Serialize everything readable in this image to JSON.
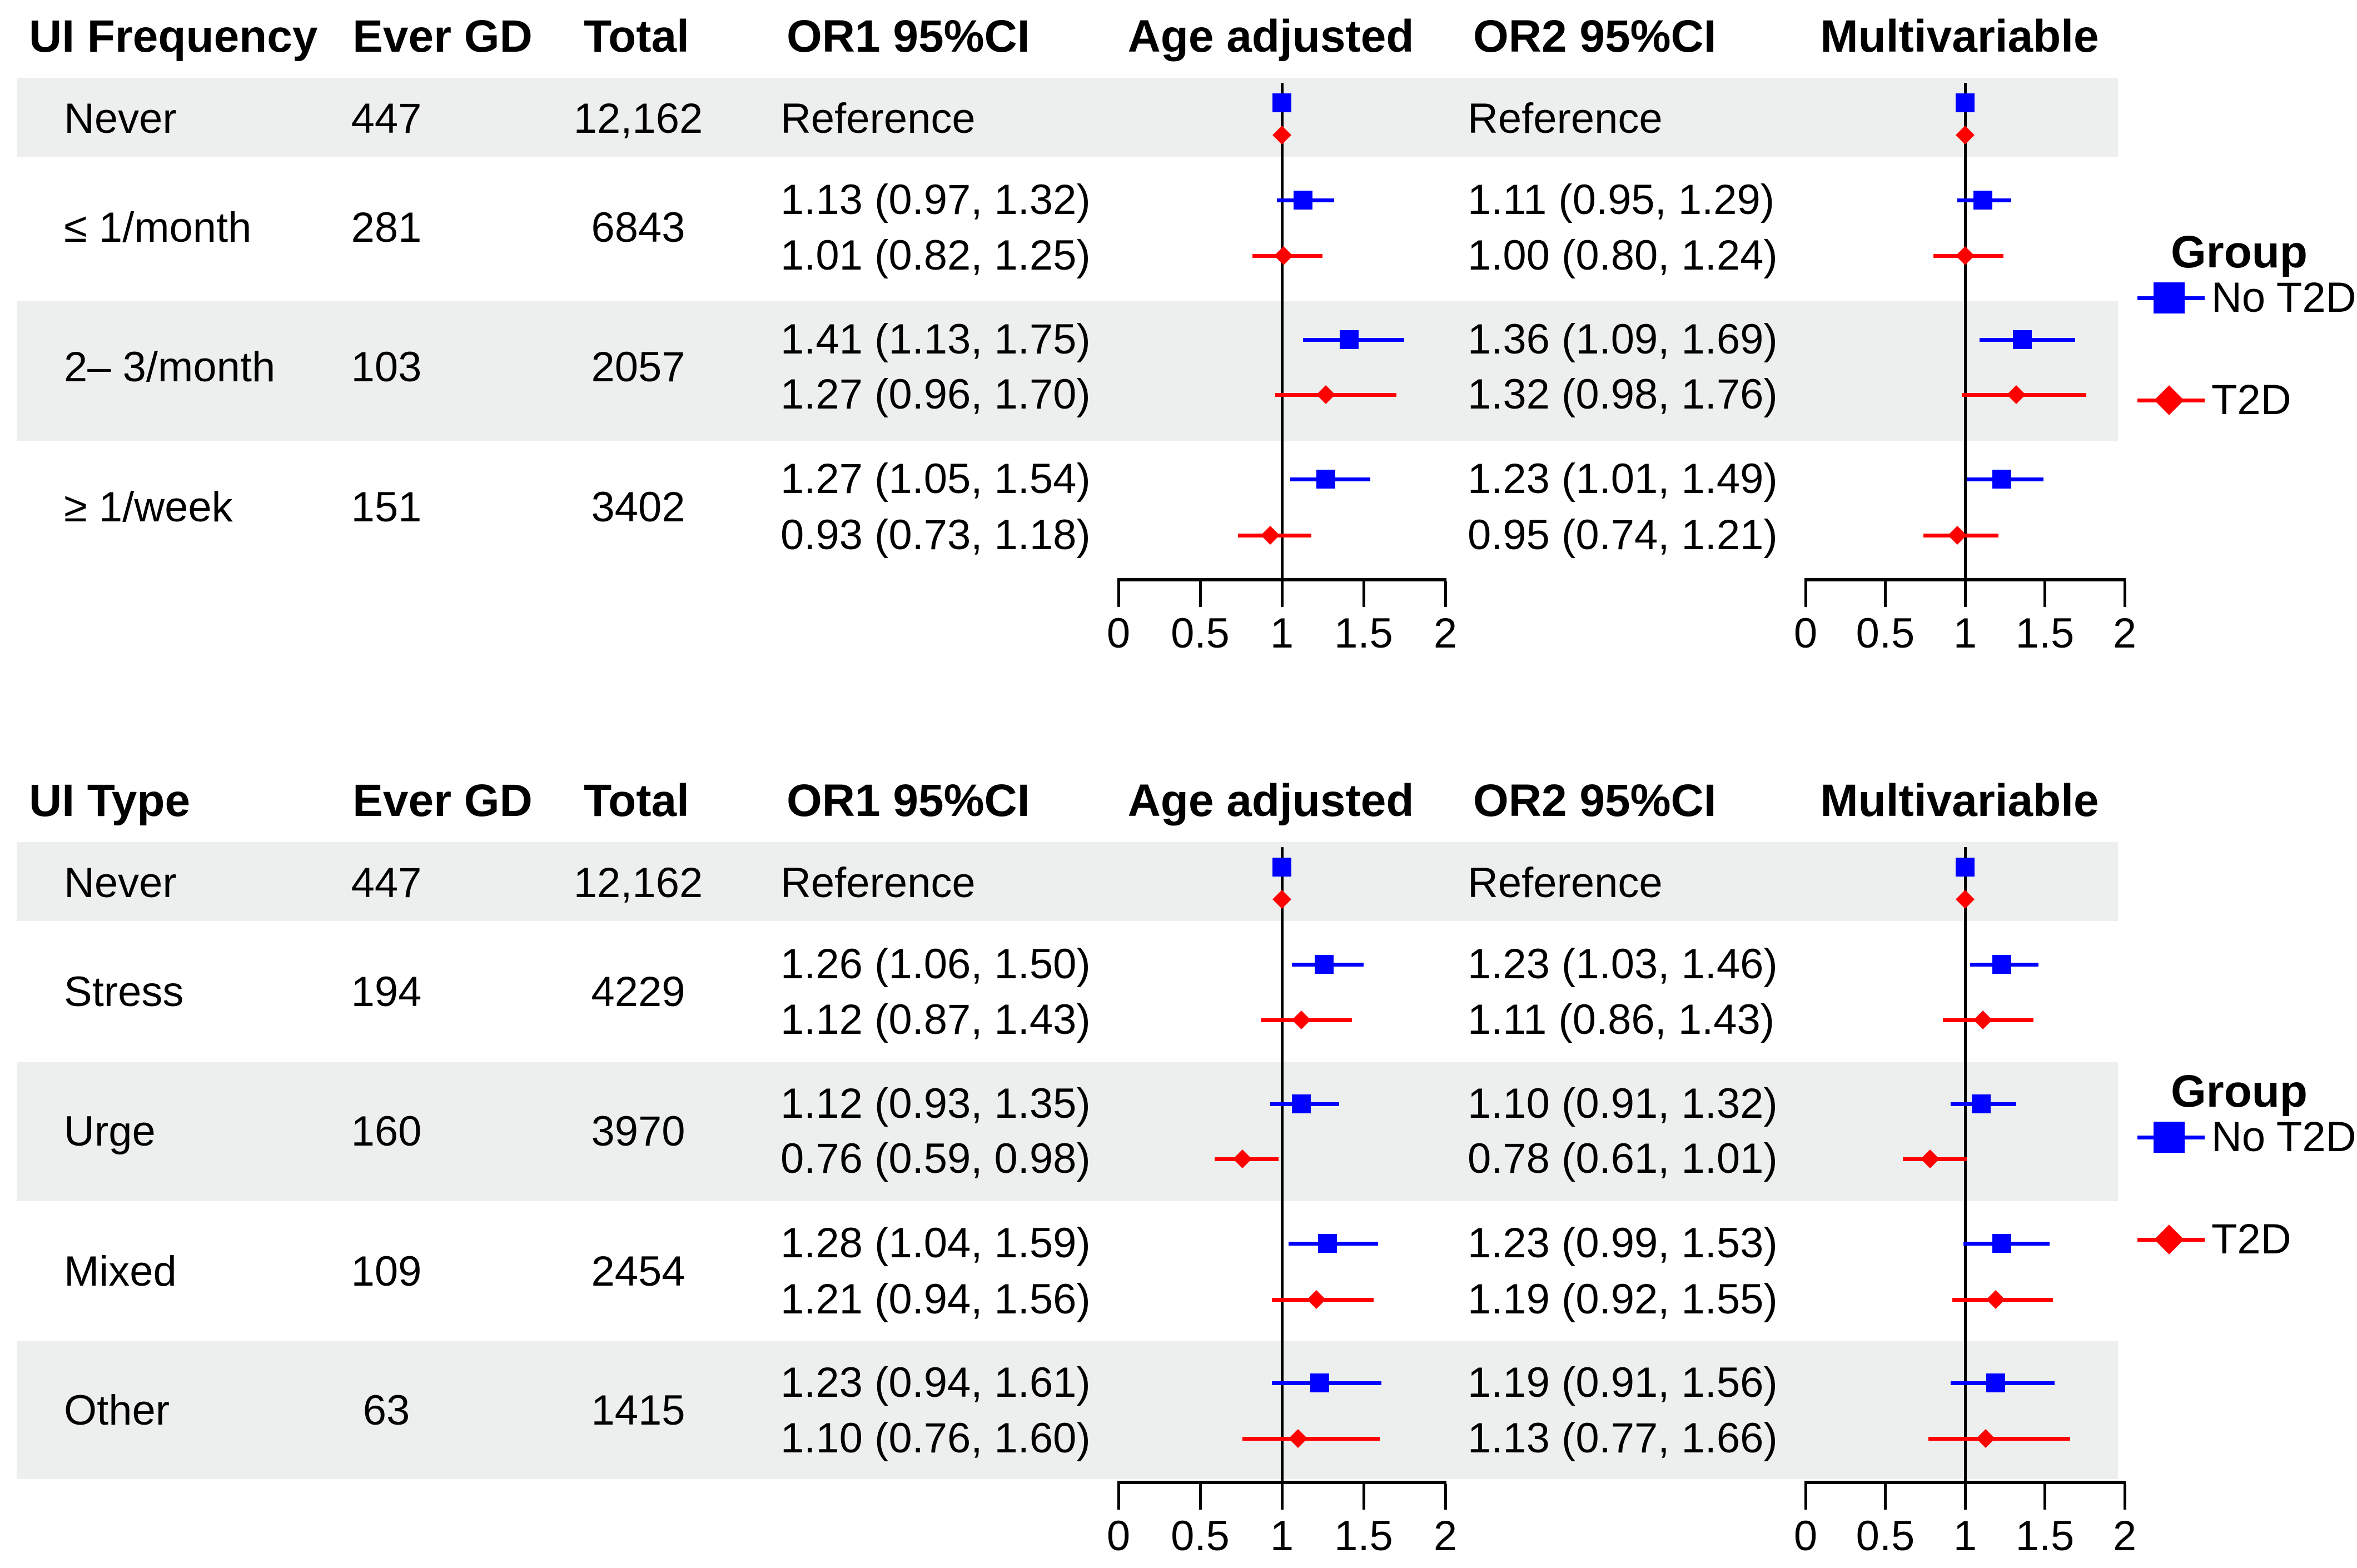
{
  "chart_data": {
    "type": "scatter",
    "variant": "forest_plot",
    "colors": {
      "no_t2d": "#0000ff",
      "t2d": "#ff0000",
      "band": "#ecefed",
      "axis": "#000000",
      "text": "#000000"
    },
    "axis": {
      "min": 0,
      "max": 2,
      "ref_value": 1,
      "ticks": [
        0,
        0.5,
        1,
        1.5,
        2
      ],
      "tick_labels": [
        "0",
        "0.5",
        "1",
        "1.5",
        "2"
      ]
    },
    "legend": {
      "title": "Group",
      "items": [
        {
          "label": "No T2D",
          "marker": "square",
          "color": "#0000ff"
        },
        {
          "label": "T2D",
          "marker": "diamond",
          "color": "#ff0000"
        }
      ]
    },
    "sections": [
      {
        "id": "ui_frequency",
        "headers": {
          "label": "UI Frequency",
          "ever_gd": "Ever GD",
          "total": "Total",
          "or1": "OR1 95%CI",
          "plot1": "Age adjusted",
          "or2": "OR2 95%CI",
          "plot2": "Multivariable"
        },
        "rows": [
          {
            "label": "Never",
            "ever_gd": "447",
            "total": "12,162",
            "reference": true,
            "shaded": true,
            "or1_text": [
              "Reference"
            ],
            "or2_text": [
              "Reference"
            ],
            "no_t2d": {
              "or1": [
                1,
                1,
                1
              ],
              "or2": [
                1,
                1,
                1
              ]
            },
            "t2d": {
              "or1": [
                1,
                1,
                1
              ],
              "or2": [
                1,
                1,
                1
              ]
            }
          },
          {
            "label": "≤ 1/month",
            "ever_gd": "281",
            "total": "6843",
            "reference": false,
            "shaded": false,
            "or1_text": [
              "1.13 (0.97, 1.32)",
              "1.01 (0.82, 1.25)"
            ],
            "or2_text": [
              "1.11 (0.95, 1.29)",
              "1.00 (0.80, 1.24)"
            ],
            "no_t2d": {
              "or1": [
                1.13,
                0.97,
                1.32
              ],
              "or2": [
                1.11,
                0.95,
                1.29
              ]
            },
            "t2d": {
              "or1": [
                1.01,
                0.82,
                1.25
              ],
              "or2": [
                1.0,
                0.8,
                1.24
              ]
            }
          },
          {
            "label": "2– 3/month",
            "ever_gd": "103",
            "total": "2057",
            "reference": false,
            "shaded": true,
            "or1_text": [
              "1.41 (1.13, 1.75)",
              "1.27 (0.96, 1.70)"
            ],
            "or2_text": [
              "1.36 (1.09, 1.69)",
              "1.32 (0.98, 1.76)"
            ],
            "no_t2d": {
              "or1": [
                1.41,
                1.13,
                1.75
              ],
              "or2": [
                1.36,
                1.09,
                1.69
              ]
            },
            "t2d": {
              "or1": [
                1.27,
                0.96,
                1.7
              ],
              "or2": [
                1.32,
                0.98,
                1.76
              ]
            }
          },
          {
            "label": "≥ 1/week",
            "ever_gd": "151",
            "total": "3402",
            "reference": false,
            "shaded": false,
            "or1_text": [
              "1.27 (1.05, 1.54)",
              "0.93 (0.73, 1.18)"
            ],
            "or2_text": [
              "1.23 (1.01, 1.49)",
              "0.95 (0.74, 1.21)"
            ],
            "no_t2d": {
              "or1": [
                1.27,
                1.05,
                1.54
              ],
              "or2": [
                1.23,
                1.01,
                1.49
              ]
            },
            "t2d": {
              "or1": [
                0.93,
                0.73,
                1.18
              ],
              "or2": [
                0.95,
                0.74,
                1.21
              ]
            }
          }
        ]
      },
      {
        "id": "ui_type",
        "headers": {
          "label": "UI Type",
          "ever_gd": "Ever GD",
          "total": "Total",
          "or1": "OR1 95%CI",
          "plot1": "Age adjusted",
          "or2": "OR2 95%CI",
          "plot2": "Multivariable"
        },
        "rows": [
          {
            "label": "Never",
            "ever_gd": "447",
            "total": "12,162",
            "reference": true,
            "shaded": true,
            "or1_text": [
              "Reference"
            ],
            "or2_text": [
              "Reference"
            ],
            "no_t2d": {
              "or1": [
                1,
                1,
                1
              ],
              "or2": [
                1,
                1,
                1
              ]
            },
            "t2d": {
              "or1": [
                1,
                1,
                1
              ],
              "or2": [
                1,
                1,
                1
              ]
            }
          },
          {
            "label": "Stress",
            "ever_gd": "194",
            "total": "4229",
            "reference": false,
            "shaded": false,
            "or1_text": [
              "1.26 (1.06, 1.50)",
              "1.12 (0.87, 1.43)"
            ],
            "or2_text": [
              "1.23 (1.03, 1.46)",
              "1.11 (0.86, 1.43)"
            ],
            "no_t2d": {
              "or1": [
                1.26,
                1.06,
                1.5
              ],
              "or2": [
                1.23,
                1.03,
                1.46
              ]
            },
            "t2d": {
              "or1": [
                1.12,
                0.87,
                1.43
              ],
              "or2": [
                1.11,
                0.86,
                1.43
              ]
            }
          },
          {
            "label": "Urge",
            "ever_gd": "160",
            "total": "3970",
            "reference": false,
            "shaded": true,
            "or1_text": [
              "1.12 (0.93, 1.35)",
              "0.76 (0.59, 0.98)"
            ],
            "or2_text": [
              "1.10 (0.91, 1.32)",
              "0.78 (0.61, 1.01)"
            ],
            "no_t2d": {
              "or1": [
                1.12,
                0.93,
                1.35
              ],
              "or2": [
                1.1,
                0.91,
                1.32
              ]
            },
            "t2d": {
              "or1": [
                0.76,
                0.59,
                0.98
              ],
              "or2": [
                0.78,
                0.61,
                1.01
              ]
            }
          },
          {
            "label": "Mixed",
            "ever_gd": "109",
            "total": "2454",
            "reference": false,
            "shaded": false,
            "or1_text": [
              "1.28 (1.04, 1.59)",
              "1.21 (0.94, 1.56)"
            ],
            "or2_text": [
              "1.23 (0.99, 1.53)",
              "1.19 (0.92, 1.55)"
            ],
            "no_t2d": {
              "or1": [
                1.28,
                1.04,
                1.59
              ],
              "or2": [
                1.23,
                0.99,
                1.53
              ]
            },
            "t2d": {
              "or1": [
                1.21,
                0.94,
                1.56
              ],
              "or2": [
                1.19,
                0.92,
                1.55
              ]
            }
          },
          {
            "label": "Other",
            "ever_gd": "63",
            "total": "1415",
            "reference": false,
            "shaded": true,
            "or1_text": [
              "1.23 (0.94, 1.61)",
              "1.10 (0.76, 1.60)"
            ],
            "or2_text": [
              "1.19 (0.91, 1.56)",
              "1.13 (0.77, 1.66)"
            ],
            "no_t2d": {
              "or1": [
                1.23,
                0.94,
                1.61
              ],
              "or2": [
                1.19,
                0.91,
                1.56
              ]
            },
            "t2d": {
              "or1": [
                1.1,
                0.76,
                1.6
              ],
              "or2": [
                1.13,
                0.77,
                1.66
              ]
            }
          }
        ]
      }
    ]
  }
}
